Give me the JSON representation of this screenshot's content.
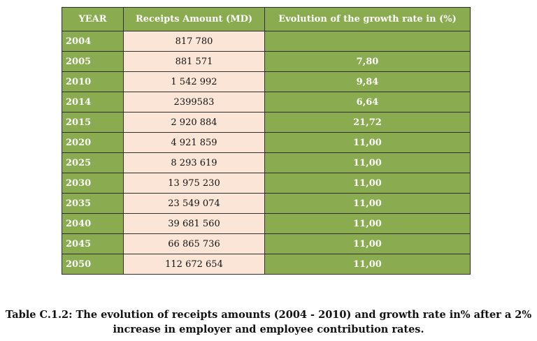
{
  "table": {
    "headers": [
      "YEAR",
      "Receipts Amount  (MD)",
      "Evolution of the growth  rate in (%)"
    ],
    "rows": [
      {
        "year": "2004",
        "amount": "817 780",
        "rate": ""
      },
      {
        "year": "2005",
        "amount": "881 571",
        "rate": "7,80"
      },
      {
        "year": "2010",
        "amount": "1 542 992",
        "rate": "9,84"
      },
      {
        "year": "2014",
        "amount": "2399583",
        "rate": "6,64"
      },
      {
        "year": "2015",
        "amount": "2 920 884",
        "rate": "21,72"
      },
      {
        "year": "2020",
        "amount": "4 921 859",
        "rate": "11,00"
      },
      {
        "year": "2025",
        "amount": "8 293 619",
        "rate": "11,00"
      },
      {
        "year": "2030",
        "amount": "13 975 230",
        "rate": "11,00"
      },
      {
        "year": "2035",
        "amount": "23 549 074",
        "rate": "11,00"
      },
      {
        "year": "2040",
        "amount": "39 681 560",
        "rate": "11,00"
      },
      {
        "year": "2045",
        "amount": "66 865 736",
        "rate": "11,00"
      },
      {
        "year": "2050",
        "amount": "112 672 654",
        "rate": "11,00"
      }
    ]
  },
  "caption": {
    "line1": "Table C.1.2: The evolution of receipts amounts (2004 - 2010) and growth rate in% after a 2%",
    "line2": "increase in employer and employee contribution rates."
  },
  "colors": {
    "green": "#8aab4f",
    "peach": "#fbe5d6"
  }
}
